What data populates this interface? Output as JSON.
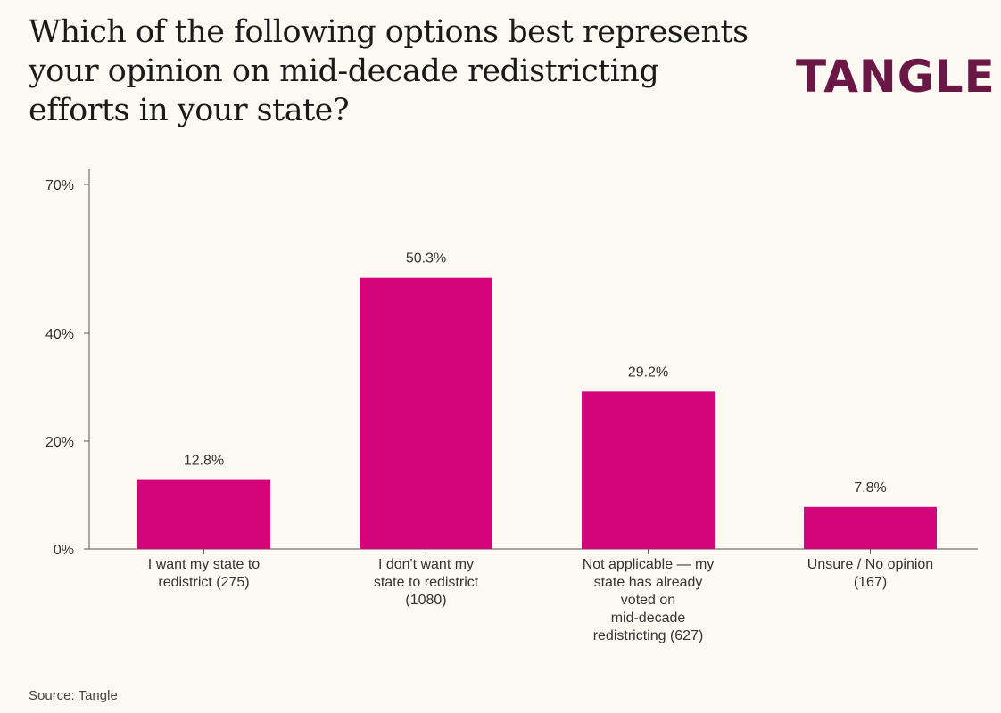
{
  "title": "Which of the following options best represents your opinion on mid-decade redistricting efforts in your state?",
  "brand": "TANGLE",
  "source": "Source: Tangle",
  "colors": {
    "bar": "#d4047a",
    "axis": "#555555",
    "brand": "#6b1745",
    "background": "#fbf9f1"
  },
  "chart_data": {
    "type": "bar",
    "title": "Which of the following options best represents your opinion on mid-decade redistricting efforts in your state?",
    "xlabel": "",
    "ylabel": "",
    "ylim": [
      0,
      70
    ],
    "yticks": [
      0,
      20,
      40,
      70
    ],
    "ytick_labels": [
      "0%",
      "20%",
      "40%",
      "70%"
    ],
    "categories": [
      [
        "I want my state to",
        "redistrict (275)"
      ],
      [
        "I don't want my",
        "state to redistrict",
        "(1080)"
      ],
      [
        "Not applicable — my",
        "state has already",
        "voted on",
        "mid-decade",
        "redistricting (627)"
      ],
      [
        "Unsure / No opinion",
        "(167)"
      ]
    ],
    "values": [
      12.8,
      50.3,
      29.2,
      7.8
    ],
    "value_labels": [
      "12.8%",
      "50.3%",
      "29.2%",
      "7.8%"
    ]
  }
}
